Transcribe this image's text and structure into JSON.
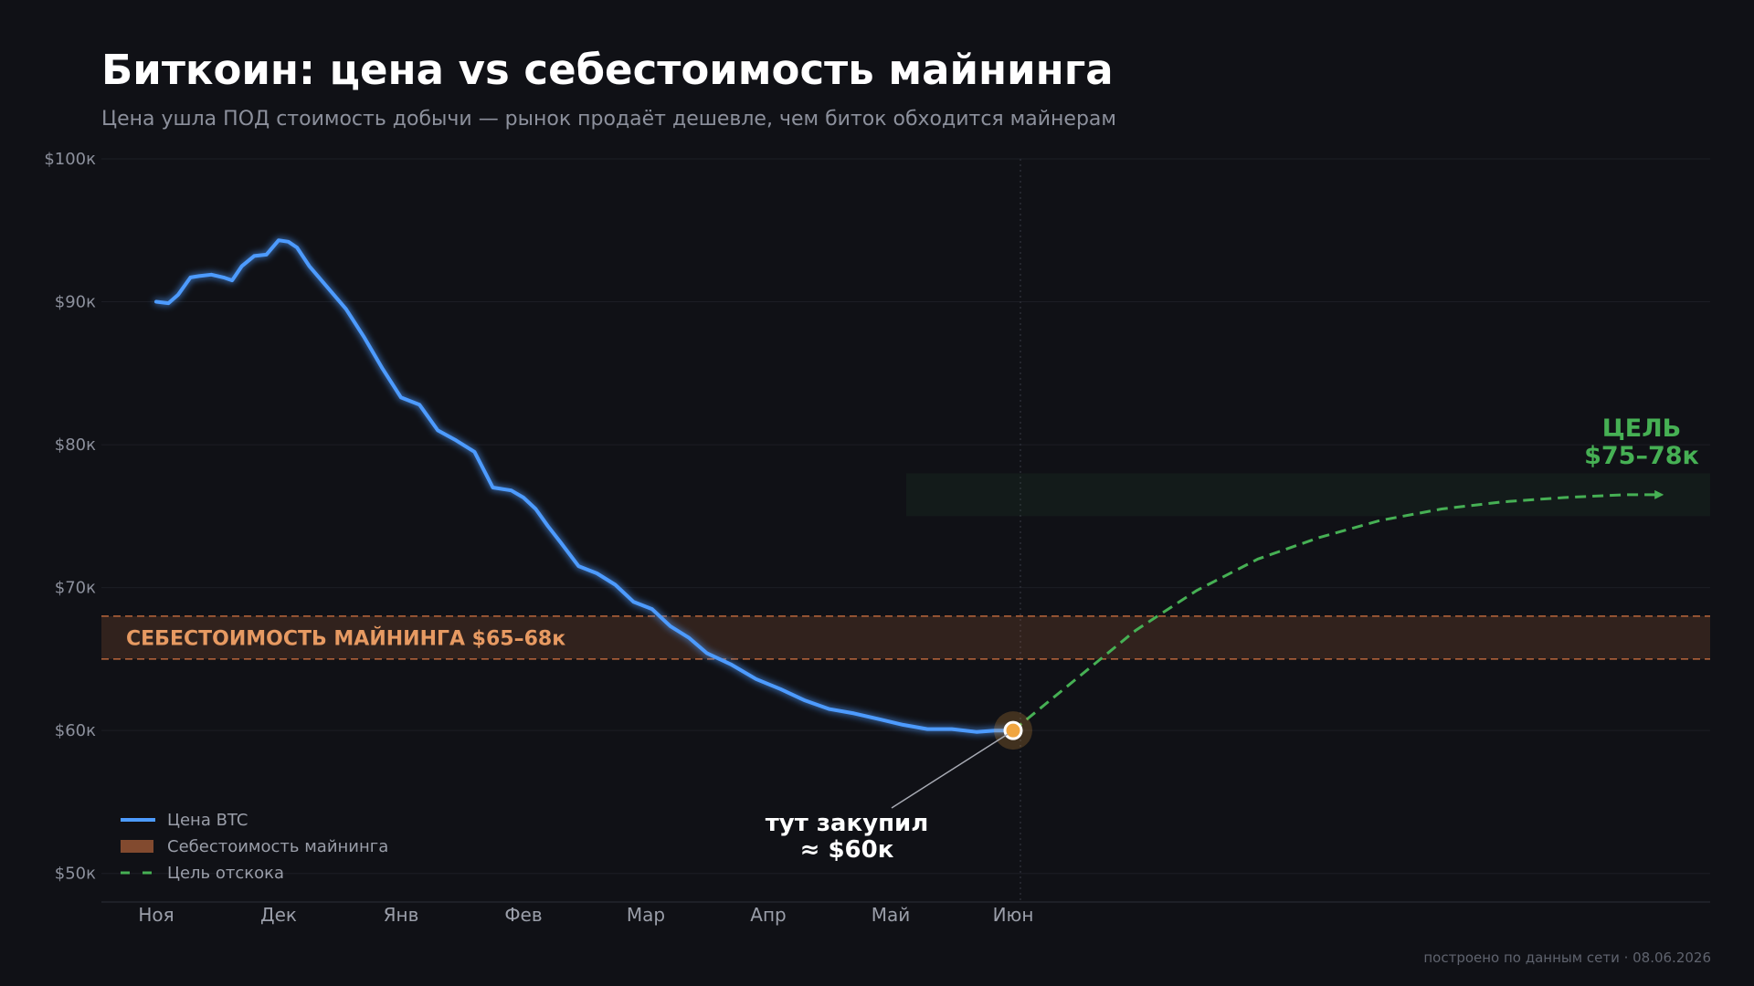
{
  "title": "Биткоин: цена vs себестоимость майнинга",
  "subtitle": "Цена ушла ПОД стоимость добычи — рынок продаёт дешевле, чем биток обходится майнерам",
  "footer": "построено по данным сети · 08.06.2026",
  "colors": {
    "background": "#101116",
    "price_line": "#4d9bff",
    "mining_band": "#e07a45",
    "target": "#46b054",
    "buy_point": "#f0a540"
  },
  "chart_data": {
    "type": "line",
    "x_ticks": [
      "Ноя",
      "Дек",
      "Янв",
      "Фев",
      "Мар",
      "Апр",
      "Май",
      "Июн"
    ],
    "y_ticks": [
      "$50к",
      "$60к",
      "$70к",
      "$80к",
      "$90к",
      "$100к"
    ],
    "ylim": [
      48000,
      100000
    ],
    "grid": "horizontal",
    "legend_position": "bottom-left",
    "legend": [
      "Цена BTC",
      "Себестоимость майнинга",
      "Цель отскока"
    ],
    "series": [
      {
        "name": "Цена BTC",
        "x_months": [
          0,
          0.1,
          0.18,
          0.28,
          0.35,
          0.45,
          0.55,
          0.62,
          0.7,
          0.8,
          0.9,
          0.95,
          1.0,
          1.08,
          1.15,
          1.25,
          1.4,
          1.55,
          1.7,
          1.85,
          2.0,
          2.15,
          2.3,
          2.45,
          2.6,
          2.75,
          2.9,
          3.0,
          3.1,
          3.2,
          3.3,
          3.45,
          3.6,
          3.75,
          3.9,
          4.05,
          4.2,
          4.35,
          4.5,
          4.7,
          4.9,
          5.1,
          5.3,
          5.5,
          5.7,
          5.9,
          6.1,
          6.3,
          6.5,
          6.7,
          6.85,
          7.0
        ],
        "values": [
          90000,
          89900,
          90500,
          91700,
          91800,
          91900,
          91700,
          91500,
          92500,
          93200,
          93300,
          93800,
          94300,
          94200,
          93800,
          92500,
          91000,
          89500,
          87500,
          85300,
          83300,
          82800,
          81000,
          80300,
          79500,
          77000,
          76800,
          76300,
          75500,
          74300,
          73200,
          71500,
          71000,
          70200,
          69000,
          68500,
          67300,
          66500,
          65400,
          64600,
          63600,
          62900,
          62100,
          61500,
          61200,
          60800,
          60400,
          60100,
          60100,
          59900,
          60000,
          60000
        ]
      },
      {
        "name": "Себестоимость майнинга",
        "range": [
          65000,
          68000
        ],
        "label": "СЕБЕСТОИМОСТЬ МАЙНИНГА  $65–68к"
      },
      {
        "name": "Цель отскока",
        "x_months": [
          7.0,
          7.5,
          8.0,
          8.5,
          9.0,
          9.5,
          10.0,
          10.5,
          11.0,
          11.5,
          12.0,
          12.3
        ],
        "values": [
          60000,
          63500,
          67000,
          69800,
          72000,
          73500,
          74700,
          75500,
          76000,
          76300,
          76500,
          76500
        ]
      }
    ],
    "target_zone": {
      "range": [
        75000,
        78000
      ],
      "label_line1": "ЦЕЛЬ",
      "label_line2": "$75–78к"
    },
    "annotation": {
      "x_month": 7.0,
      "value": 60000,
      "line1": "тут закупил",
      "line2": "≈ $60к"
    }
  }
}
